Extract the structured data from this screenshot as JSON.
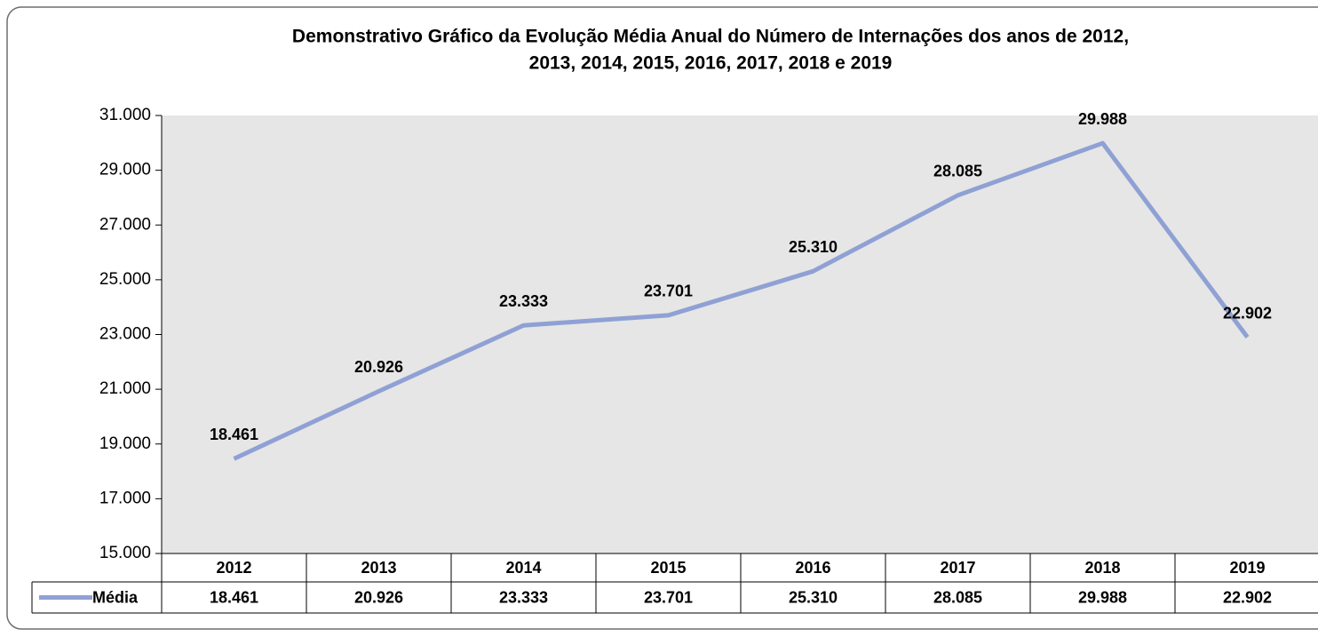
{
  "chart_data": {
    "type": "line",
    "title": [
      "Demonstrativo Gráfico da Evolução Média Anual do Número de Internações dos anos de  2012,",
      "2013, 2014, 2015, 2016, 2017, 2018 e 2019"
    ],
    "categories": [
      "2012",
      "2013",
      "2014",
      "2015",
      "2016",
      "2017",
      "2018",
      "2019"
    ],
    "series": [
      {
        "name": "Média",
        "color": "#8fa1d4",
        "values": [
          18461,
          20926,
          23333,
          23701,
          25310,
          28085,
          29988,
          22902
        ],
        "value_labels": [
          "18.461",
          "20.926",
          "23.333",
          "23.701",
          "25.310",
          "28.085",
          "29.988",
          "22.902"
        ]
      }
    ],
    "ylim": [
      15000,
      31000
    ],
    "yticks": [
      {
        "value": 15000,
        "label": "15.000"
      },
      {
        "value": 17000,
        "label": "17.000"
      },
      {
        "value": 19000,
        "label": "19.000"
      },
      {
        "value": 21000,
        "label": "21.000"
      },
      {
        "value": 23000,
        "label": "23.000"
      },
      {
        "value": 25000,
        "label": "25.000"
      },
      {
        "value": 27000,
        "label": "27.000"
      },
      {
        "value": 29000,
        "label": "29.000"
      },
      {
        "value": 31000,
        "label": "31.000"
      }
    ],
    "grid": false,
    "plot_background": "#e6e6e6",
    "data_table": true
  }
}
